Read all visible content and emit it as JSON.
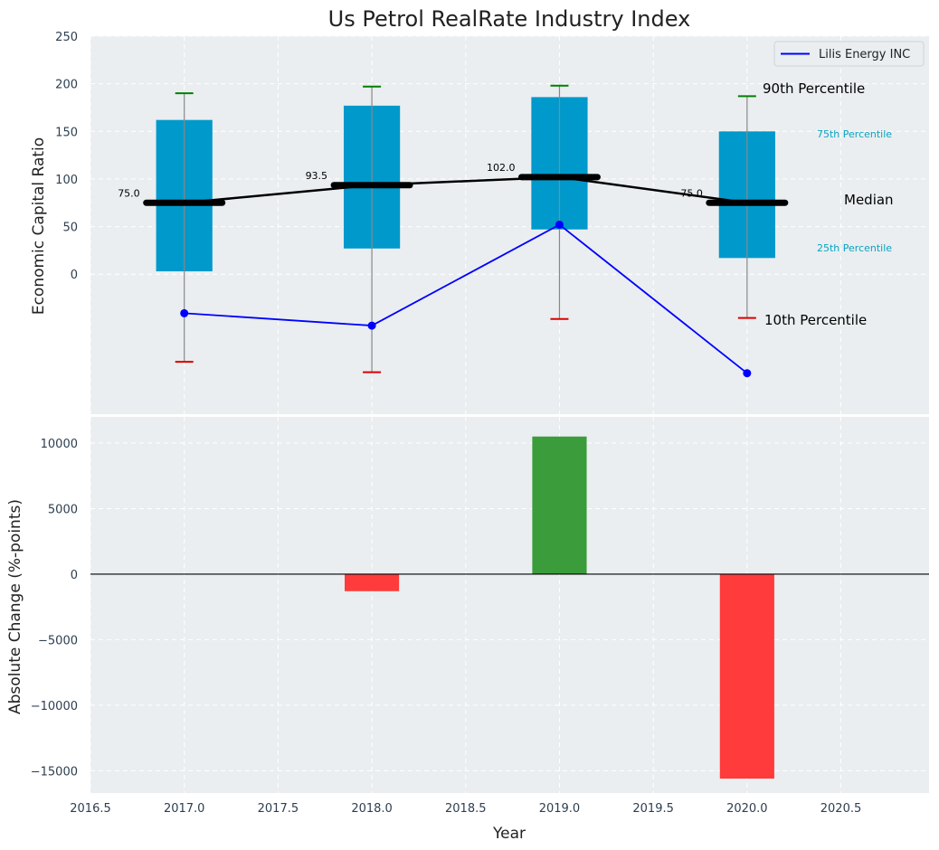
{
  "chart_data": [
    {
      "type": "box-with-line",
      "title": "Us Petrol RealRate Industry Index",
      "xlabel": "",
      "ylabel": "Economic Capital Ratio",
      "xlim": [
        2016.5,
        2020.97
      ],
      "ylim": [
        -147,
        250
      ],
      "y_ticks": [
        0,
        50,
        100,
        150,
        200,
        250
      ],
      "y_tick_labels": [
        "0",
        "50",
        "100",
        "150",
        "200",
        "250"
      ],
      "grid": true,
      "boxes": [
        {
          "x": 2017,
          "p10": -92,
          "p25": 3,
          "median": 75,
          "p75": 162,
          "p90": 190,
          "median_label": "75.0"
        },
        {
          "x": 2018,
          "p10": -103,
          "p25": 27,
          "median": 93.5,
          "p75": 177,
          "p90": 197,
          "median_label": "93.5"
        },
        {
          "x": 2019,
          "p10": -47,
          "p25": 47,
          "median": 102,
          "p75": 186,
          "p90": 198,
          "median_label": "102.0"
        },
        {
          "x": 2020,
          "p10": -46,
          "p25": 17,
          "median": 75,
          "p75": 150,
          "p90": 187,
          "median_label": "75.0"
        }
      ],
      "series": [
        {
          "name": "Lilis Energy INC",
          "color": "#0000ff",
          "x": [
            2017,
            2018,
            2019,
            2020
          ],
          "values": [
            -41,
            -54,
            52,
            -104
          ]
        }
      ],
      "median_line": {
        "x": [
          2017,
          2018,
          2019,
          2020
        ],
        "values": [
          75,
          93.5,
          102,
          75
        ]
      },
      "annotations": [
        {
          "text": "90th Percentile",
          "color": "#000000",
          "size": "large"
        },
        {
          "text": "75th Percentile",
          "color": "#0aa3c2",
          "size": "small"
        },
        {
          "text": "Median",
          "color": "#000000",
          "size": "large"
        },
        {
          "text": "25th Percentile",
          "color": "#0aa3c2",
          "size": "small"
        },
        {
          "text": "10th Percentile",
          "color": "#000000",
          "size": "large"
        }
      ],
      "legend": {
        "placement": "top-right",
        "entries": [
          "Lilis Energy INC"
        ]
      },
      "colors": {
        "box": "#0099cc",
        "whisker": "#888888",
        "cap_top": "#008000",
        "cap_bottom": "#dd0000",
        "median": "#000000",
        "plot_bg": "#eaeef0"
      }
    },
    {
      "type": "bar",
      "xlabel": "Year",
      "ylabel": "Absolute Change (%-points)",
      "xlim": [
        2016.5,
        2020.97
      ],
      "ylim": [
        -16700,
        12000
      ],
      "x_ticks": [
        2016.5,
        2017.0,
        2017.5,
        2018.0,
        2018.5,
        2019.0,
        2019.5,
        2020.0,
        2020.5
      ],
      "x_tick_labels": [
        "2016.5",
        "2017.0",
        "2017.5",
        "2018.0",
        "2018.5",
        "2019.0",
        "2019.5",
        "2020.0",
        "2020.5"
      ],
      "y_ticks": [
        -15000,
        -10000,
        -5000,
        0,
        5000,
        10000
      ],
      "y_tick_labels": [
        "−15000",
        "−10000",
        "−5000",
        "0",
        "5000",
        "10000"
      ],
      "grid": true,
      "categories": [
        2017,
        2018,
        2019,
        2020
      ],
      "values": [
        0,
        -1300,
        10500,
        -15600
      ],
      "colors": {
        "positive": "#3a9c3a",
        "negative": "#ff3b3b",
        "zero_line": "#000000"
      }
    }
  ]
}
